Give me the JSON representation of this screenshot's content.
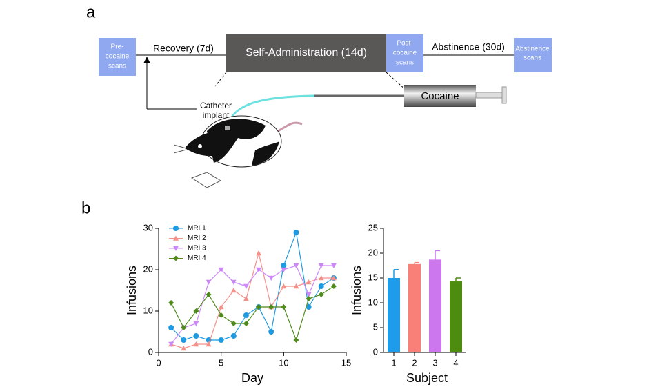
{
  "figure": {
    "panel_labels": [
      "a",
      "b"
    ],
    "diagram": {
      "pre_scans": [
        "Pre-",
        "cocaine",
        "scans"
      ],
      "recovery": "Recovery (7d)",
      "self_admin": "Self-Administration (14d)",
      "post_scans": [
        "Post-",
        "cocaine",
        "scans"
      ],
      "abstinence": "Abstinence (30d)",
      "abst_scans": [
        "Abstinence",
        "scans"
      ],
      "catheter": [
        "Catheter",
        "implant"
      ],
      "cocaine": "Cocaine"
    }
  },
  "chart_data": [
    {
      "type": "line",
      "xlabel": "Day",
      "ylabel": "Infusions",
      "xlim": [
        0,
        15
      ],
      "xticks": [
        0,
        5,
        10,
        15
      ],
      "ylim": [
        0,
        30
      ],
      "yticks": [
        0,
        10,
        20,
        30
      ],
      "legend": "upper left",
      "x": [
        1,
        2,
        3,
        4,
        5,
        6,
        7,
        8,
        9,
        10,
        11,
        12,
        13,
        14
      ],
      "series": [
        {
          "name": "MRI 1",
          "color": "#1f9ae0",
          "marker": "circle",
          "values": [
            6,
            3,
            4,
            3,
            3,
            4,
            9,
            11,
            5,
            21,
            29,
            11,
            16,
            18
          ]
        },
        {
          "name": "MRI 2",
          "color": "#f4908a",
          "marker": "triangle-up",
          "values": [
            2,
            1,
            2,
            2,
            11,
            15,
            13,
            24,
            11,
            16,
            16,
            17,
            18,
            18
          ]
        },
        {
          "name": "MRI 3",
          "color": "#cc88f8",
          "marker": "triangle-down",
          "values": [
            2,
            6,
            7,
            17,
            20,
            17,
            16,
            20,
            18,
            20,
            21,
            14,
            21,
            21
          ]
        },
        {
          "name": "MRI 4",
          "color": "#4f8b1c",
          "marker": "diamond",
          "values": [
            12,
            6,
            10,
            14,
            9,
            7,
            7,
            11,
            11,
            11,
            3,
            13,
            14,
            16
          ]
        }
      ]
    },
    {
      "type": "bar",
      "xlabel": "Subject",
      "ylabel": "Infusions",
      "categories": [
        "1",
        "2",
        "3",
        "4"
      ],
      "values": [
        15,
        17.8,
        18.7,
        14.3
      ],
      "errors": [
        1.7,
        0.3,
        1.8,
        0.7
      ],
      "colors": [
        "#1e9be9",
        "#f88078",
        "#cc77ee",
        "#4e8c10"
      ],
      "ylim": [
        0,
        25
      ],
      "yticks": [
        0,
        5,
        10,
        15,
        20,
        25
      ]
    }
  ]
}
